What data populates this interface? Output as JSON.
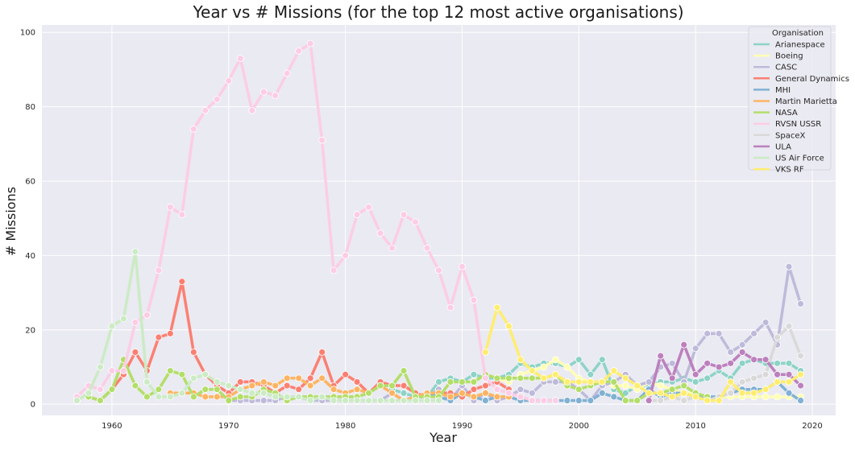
{
  "chart_data": {
    "type": "line",
    "title": "Year vs # Missions (for the top 12 most active organisations)",
    "xlabel": "Year",
    "ylabel": "# Missions",
    "xlim": [
      1954,
      2022
    ],
    "ylim": [
      -3,
      102
    ],
    "xticks": [
      1960,
      1970,
      1980,
      1990,
      2000,
      2010,
      2020
    ],
    "yticks": [
      0,
      20,
      40,
      60,
      80,
      100
    ],
    "grid": true,
    "legend": {
      "title": "Organisation",
      "placement": "top-right"
    },
    "series": [
      {
        "name": "Arianespace",
        "color": "#8dd3c7",
        "x": [
          1984,
          1985,
          1986,
          1987,
          1988,
          1989,
          1990,
          1991,
          1992,
          1993,
          1994,
          1995,
          1996,
          1997,
          1998,
          1999,
          2000,
          2001,
          2002,
          2003,
          2004,
          2005,
          2006,
          2007,
          2008,
          2009,
          2010,
          2011,
          2012,
          2013,
          2014,
          2015,
          2016,
          2017,
          2018,
          2019
        ],
        "y": [
          4,
          3,
          2,
          2,
          6,
          7,
          6,
          8,
          7,
          7,
          8,
          11,
          10,
          11,
          11,
          10,
          12,
          8,
          12,
          4,
          3,
          5,
          5,
          6,
          6,
          7,
          6,
          7,
          9,
          7,
          11,
          12,
          11,
          11,
          11,
          9
        ]
      },
      {
        "name": "Boeing",
        "color": "#ffffb3",
        "x": [
          1993,
          1994,
          1995,
          1996,
          1997,
          1998,
          1999,
          2000,
          2001,
          2002,
          2003,
          2004,
          2005,
          2006,
          2007,
          2008,
          2009,
          2010,
          2011,
          2012,
          2013,
          2014,
          2015,
          2016,
          2017,
          2018,
          2019
        ],
        "y": [
          7,
          6,
          8,
          9,
          10,
          12,
          10,
          7,
          6,
          6,
          5,
          5,
          4,
          6,
          5,
          4,
          3,
          3,
          2,
          2,
          2,
          2,
          2,
          2,
          2,
          2,
          2
        ]
      },
      {
        "name": "CASC",
        "color": "#bebada",
        "x": [
          1970,
          1971,
          1972,
          1973,
          1974,
          1975,
          1976,
          1977,
          1978,
          1979,
          1980,
          1981,
          1982,
          1983,
          1984,
          1985,
          1986,
          1987,
          1988,
          1989,
          1990,
          1991,
          1992,
          1993,
          1994,
          1995,
          1996,
          1997,
          1998,
          1999,
          2000,
          2001,
          2002,
          2003,
          2004,
          2005,
          2006,
          2007,
          2008,
          2009,
          2010,
          2011,
          2012,
          2013,
          2014,
          2015,
          2016,
          2017,
          2018,
          2019
        ],
        "y": [
          1,
          1,
          1,
          1,
          1,
          2,
          2,
          1,
          1,
          1,
          1,
          1,
          1,
          1,
          3,
          1,
          2,
          2,
          4,
          1,
          5,
          1,
          3,
          1,
          2,
          4,
          3,
          6,
          6,
          6,
          4,
          1,
          5,
          6,
          8,
          5,
          6,
          10,
          11,
          6,
          15,
          19,
          19,
          14,
          16,
          19,
          22,
          16,
          37,
          27
        ]
      },
      {
        "name": "General Dynamics",
        "color": "#fb8072",
        "x": [
          1958,
          1959,
          1960,
          1961,
          1962,
          1963,
          1964,
          1965,
          1966,
          1967,
          1968,
          1969,
          1970,
          1971,
          1972,
          1973,
          1974,
          1975,
          1976,
          1977,
          1978,
          1979,
          1980,
          1981,
          1982,
          1983,
          1984,
          1985,
          1986,
          1987,
          1988,
          1989,
          1990,
          1991,
          1992,
          1993,
          1994
        ],
        "y": [
          2,
          1,
          4,
          8,
          14,
          9,
          18,
          19,
          33,
          14,
          8,
          5,
          3,
          6,
          6,
          5,
          3,
          5,
          4,
          7,
          14,
          5,
          8,
          6,
          3,
          6,
          5,
          5,
          3,
          2,
          3,
          3,
          2,
          4,
          5,
          6,
          4
        ]
      },
      {
        "name": "MHI",
        "color": "#80b1d3",
        "x": [
          1986,
          1987,
          1988,
          1989,
          1990,
          1991,
          1992,
          1993,
          1994,
          1995,
          1996,
          1997,
          1998,
          1999,
          2000,
          2001,
          2002,
          2003,
          2004,
          2005,
          2006,
          2007,
          2008,
          2009,
          2010,
          2011,
          2012,
          2013,
          2014,
          2015,
          2016,
          2017,
          2018,
          2019
        ],
        "y": [
          2,
          3,
          2,
          1,
          3,
          2,
          1,
          2,
          2,
          1,
          1,
          1,
          1,
          1,
          1,
          1,
          3,
          2,
          1,
          1,
          4,
          2,
          3,
          3,
          2,
          2,
          2,
          3,
          4,
          4,
          4,
          6,
          3,
          1
        ]
      },
      {
        "name": "Martin Marietta",
        "color": "#fdb462",
        "x": [
          1965,
          1966,
          1967,
          1968,
          1969,
          1970,
          1971,
          1972,
          1973,
          1974,
          1975,
          1976,
          1977,
          1978,
          1979,
          1980,
          1981,
          1982,
          1983,
          1984,
          1985,
          1986,
          1987,
          1988,
          1989,
          1990,
          1991,
          1992,
          1993,
          1994
        ],
        "y": [
          3,
          3,
          3,
          2,
          2,
          2,
          4,
          5,
          6,
          5,
          7,
          7,
          5,
          7,
          4,
          3,
          4,
          3,
          5,
          3,
          1,
          2,
          3,
          3,
          2,
          3,
          2,
          3,
          2,
          2
        ]
      },
      {
        "name": "NASA",
        "color": "#b3de69",
        "x": [
          1958,
          1959,
          1960,
          1961,
          1962,
          1963,
          1964,
          1965,
          1966,
          1967,
          1968,
          1969,
          1970,
          1971,
          1972,
          1973,
          1974,
          1975,
          1976,
          1977,
          1978,
          1979,
          1980,
          1981,
          1982,
          1983,
          1984,
          1985,
          1986,
          1987,
          1988,
          1989,
          1990,
          1991,
          1992,
          1993,
          1994,
          1995,
          1996,
          1997,
          1998,
          1999,
          2000,
          2001,
          2002,
          2003,
          2004,
          2005,
          2006,
          2007,
          2008,
          2009,
          2010,
          2011
        ],
        "y": [
          2,
          1,
          4,
          12,
          5,
          2,
          4,
          9,
          8,
          2,
          4,
          4,
          1,
          2,
          2,
          4,
          3,
          1,
          2,
          2,
          2,
          2,
          2,
          2,
          3,
          5,
          5,
          9,
          2,
          2,
          2,
          6,
          6,
          6,
          8,
          7,
          7,
          7,
          7,
          7,
          8,
          5,
          4,
          5,
          6,
          6,
          1,
          1,
          3,
          3,
          4,
          5,
          3,
          2
        ]
      },
      {
        "name": "RVSN USSR",
        "color": "#fccde5",
        "x": [
          1957,
          1958,
          1959,
          1960,
          1961,
          1962,
          1963,
          1964,
          1965,
          1966,
          1967,
          1968,
          1969,
          1970,
          1971,
          1972,
          1973,
          1974,
          1975,
          1976,
          1977,
          1978,
          1979,
          1980,
          1981,
          1982,
          1983,
          1984,
          1985,
          1986,
          1987,
          1988,
          1989,
          1990,
          1991,
          1992,
          1993,
          1994,
          1995,
          1996,
          1997,
          1998
        ],
        "y": [
          2,
          5,
          4,
          9,
          9,
          22,
          24,
          36,
          53,
          51,
          74,
          79,
          82,
          87,
          93,
          79,
          84,
          83,
          89,
          95,
          97,
          71,
          36,
          40,
          51,
          53,
          46,
          42,
          51,
          49,
          42,
          36,
          26,
          37,
          28,
          7,
          4,
          3,
          2,
          1,
          1,
          1
        ]
      },
      {
        "name": "SpaceX",
        "color": "#d9d9d9",
        "x": [
          2006,
          2007,
          2008,
          2009,
          2010,
          2011,
          2012,
          2013,
          2014,
          2015,
          2016,
          2017,
          2018,
          2019
        ],
        "y": [
          1,
          1,
          2,
          1,
          2,
          1,
          2,
          3,
          6,
          7,
          8,
          18,
          21,
          13
        ]
      },
      {
        "name": "ULA",
        "color": "#bc80bd",
        "x": [
          2006,
          2007,
          2008,
          2009,
          2010,
          2011,
          2012,
          2013,
          2014,
          2015,
          2016,
          2017,
          2018,
          2019
        ],
        "y": [
          1,
          13,
          7,
          16,
          8,
          11,
          10,
          11,
          14,
          12,
          12,
          8,
          8,
          5
        ]
      },
      {
        "name": "US Air Force",
        "color": "#ccebc5",
        "x": [
          1957,
          1958,
          1959,
          1960,
          1961,
          1962,
          1963,
          1964,
          1965,
          1966,
          1967,
          1968,
          1969,
          1970,
          1971,
          1972,
          1973,
          1974,
          1975,
          1976,
          1977,
          1978,
          1979,
          1980,
          1981,
          1982,
          1983,
          1984,
          1985,
          1986,
          1987,
          1988
        ],
        "y": [
          1,
          3,
          10,
          21,
          23,
          41,
          6,
          2,
          2,
          3,
          7,
          8,
          6,
          5,
          4,
          3,
          3,
          2,
          2,
          2,
          1,
          2,
          1,
          1,
          1,
          1,
          1,
          1,
          1,
          1,
          1,
          1
        ]
      },
      {
        "name": "VKS RF",
        "color": "#ffed6f",
        "x": [
          1992,
          1993,
          1994,
          1995,
          1996,
          1997,
          1998,
          1999,
          2000,
          2001,
          2002,
          2003,
          2004,
          2005,
          2006,
          2007,
          2008,
          2009,
          2010,
          2011,
          2012,
          2013,
          2014,
          2015,
          2016,
          2017,
          2018,
          2019
        ],
        "y": [
          14,
          26,
          21,
          12,
          9,
          7,
          8,
          6,
          6,
          6,
          6,
          9,
          7,
          5,
          3,
          3,
          2,
          3,
          2,
          1,
          1,
          6,
          3,
          3,
          4,
          6,
          6,
          8
        ]
      }
    ]
  }
}
